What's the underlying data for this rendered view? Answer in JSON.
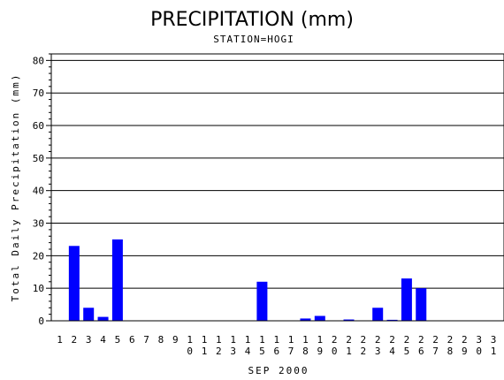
{
  "chart_data": {
    "type": "bar",
    "title": "PRECIPITATION (mm)",
    "subtitle": "STATION=HOGI",
    "xlabel": "SEP 2000",
    "ylabel": "Total Daily Precipitation (mm)",
    "categories": [
      "1",
      "2",
      "3",
      "4",
      "5",
      "6",
      "7",
      "8",
      "9",
      "10",
      "11",
      "12",
      "13",
      "14",
      "15",
      "16",
      "17",
      "18",
      "19",
      "20",
      "21",
      "22",
      "23",
      "24",
      "25",
      "26",
      "27",
      "28",
      "29",
      "30",
      "31"
    ],
    "values": [
      0,
      23,
      4,
      1.2,
      25,
      0,
      0,
      0,
      0,
      0,
      0,
      0,
      0,
      0,
      12,
      0,
      0,
      0.7,
      1.5,
      0,
      0.4,
      0,
      4,
      0.3,
      13,
      10,
      0,
      0,
      0,
      0,
      0
    ],
    "ylim": [
      0,
      82
    ],
    "yticks": [
      0,
      10,
      20,
      30,
      40,
      50,
      60,
      70,
      80
    ],
    "grid": true,
    "colors": {
      "bar": "#0000ff",
      "axis": "#000000",
      "grid": "#000000"
    }
  }
}
